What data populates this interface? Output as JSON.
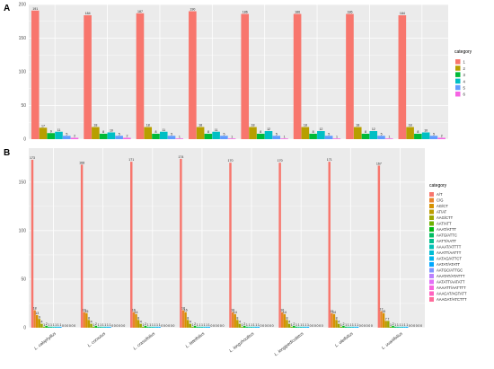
{
  "panels": {
    "a_letter": "A",
    "b_letter": "B"
  },
  "colors": {
    "panel_bg": "#ebebeb",
    "grid": "#ffffff",
    "a_palette": [
      "#F8766D",
      "#B79F00",
      "#00BA38",
      "#00BFC4",
      "#619CFF",
      "#F564E3"
    ],
    "b_palette": [
      "#F8766D",
      "#E9842C",
      "#D69100",
      "#BC9D00",
      "#9CA700",
      "#6FB000",
      "#00B813",
      "#00BD61",
      "#00C08E",
      "#00C0B4",
      "#00BDD4",
      "#00B5EE",
      "#00A7FF",
      "#7F96FF",
      "#BC81FF",
      "#E26EF7",
      "#F863DF",
      "#FF62BF",
      "#FF6A9A"
    ]
  },
  "chart_data": [
    {
      "type": "bar",
      "panel": "A",
      "categories": [
        "L. calophyllus",
        "L. cornutus",
        "L. crassifolius",
        "L. lateifolius",
        "L. longzhoulitus",
        "L. longipediculatus",
        "L. oleifolius",
        "L. uvariifolius"
      ],
      "legend_title": "category",
      "legend_position": "right",
      "grid": true,
      "ylim": [
        0,
        200
      ],
      "yticks": [
        0,
        50,
        100,
        150,
        200
      ],
      "series": [
        {
          "name": "1",
          "values": [
            191,
            184,
            187,
            190,
            186,
            186,
            186,
            184
          ]
        },
        {
          "name": "2",
          "values": [
            17,
            18,
            18,
            18,
            18,
            18,
            18,
            18
          ]
        },
        {
          "name": "3",
          "values": [
            9,
            8,
            8,
            8,
            8,
            8,
            8,
            8
          ]
        },
        {
          "name": "4",
          "values": [
            11,
            10,
            11,
            11,
            12,
            12,
            12,
            10
          ]
        },
        {
          "name": "5",
          "values": [
            5,
            5,
            5,
            5,
            5,
            5,
            5,
            5
          ]
        },
        {
          "name": "6",
          "values": [
            2,
            2,
            1,
            1,
            1,
            1,
            1,
            2
          ]
        }
      ]
    },
    {
      "type": "bar",
      "panel": "B",
      "categories": [
        "L. calophyllus",
        "L. cornutus",
        "L. crassifolius",
        "L. lateifolius",
        "L. longzhoulitus",
        "L. longipediculatus",
        "L. oleifolius",
        "L. uvariifolius"
      ],
      "legend_title": "category",
      "legend_position": "right",
      "grid": true,
      "ylim": [
        0,
        185
      ],
      "yticks": [
        0,
        50,
        100,
        150
      ],
      "series": [
        {
          "name": "A/T",
          "values": [
            173,
            168,
            171,
            174,
            170,
            170,
            171,
            167
          ]
        },
        {
          "name": "C/G",
          "values": [
            18,
            16,
            16,
            18,
            16,
            16,
            15,
            17
          ]
        },
        {
          "name": "AG/CT",
          "values": [
            13,
            15,
            14,
            16,
            14,
            14,
            14,
            15
          ]
        },
        {
          "name": "AT/AT",
          "values": [
            9,
            8,
            8,
            8,
            8,
            8,
            8,
            7
          ]
        },
        {
          "name": "AAG/CTT",
          "values": [
            4,
            4,
            4,
            4,
            4,
            4,
            4,
            7
          ]
        },
        {
          "name": "AAT/ATT",
          "values": [
            1,
            1,
            1,
            1,
            1,
            1,
            1,
            1
          ]
        },
        {
          "name": "AAAT/ATTT",
          "values": [
            2,
            2,
            2,
            2,
            2,
            2,
            2,
            2
          ]
        },
        {
          "name": "AATG/ATTC",
          "values": [
            1,
            1,
            1,
            1,
            1,
            1,
            1,
            1
          ]
        },
        {
          "name": "AATT/AATT",
          "values": [
            1,
            1,
            1,
            1,
            1,
            1,
            1,
            1
          ]
        },
        {
          "name": "AAAAT/ATTTT",
          "values": [
            1,
            1,
            1,
            1,
            1,
            1,
            1,
            1
          ]
        },
        {
          "name": "AAATT/AATTT",
          "values": [
            1,
            1,
            1,
            1,
            1,
            1,
            1,
            1
          ]
        },
        {
          "name": "AATAG/ATTCT",
          "values": [
            1,
            1,
            1,
            1,
            1,
            1,
            1,
            1
          ]
        },
        {
          "name": "AATAT/ATATT",
          "values": [
            1,
            1,
            1,
            1,
            1,
            1,
            1,
            1
          ]
        },
        {
          "name": "AATGC/ATTGC",
          "values": [
            0,
            0,
            0,
            0,
            0,
            0,
            0,
            0
          ]
        },
        {
          "name": "AAATAT/ATATTT",
          "values": [
            0,
            0,
            0,
            0,
            0,
            0,
            0,
            0
          ]
        },
        {
          "name": "AATATT/AATATT",
          "values": [
            0,
            0,
            0,
            0,
            0,
            0,
            0,
            0
          ]
        },
        {
          "name": "AAAATT/AATTTT",
          "values": [
            0,
            0,
            0,
            0,
            0,
            0,
            0,
            0
          ]
        },
        {
          "name": "AAACAT/AGTATT",
          "values": [
            0,
            0,
            0,
            0,
            0,
            0,
            0,
            0
          ]
        },
        {
          "name": "AAAGAT/ATCTTT",
          "values": [
            0,
            0,
            0,
            0,
            0,
            0,
            0,
            0
          ]
        }
      ]
    }
  ]
}
